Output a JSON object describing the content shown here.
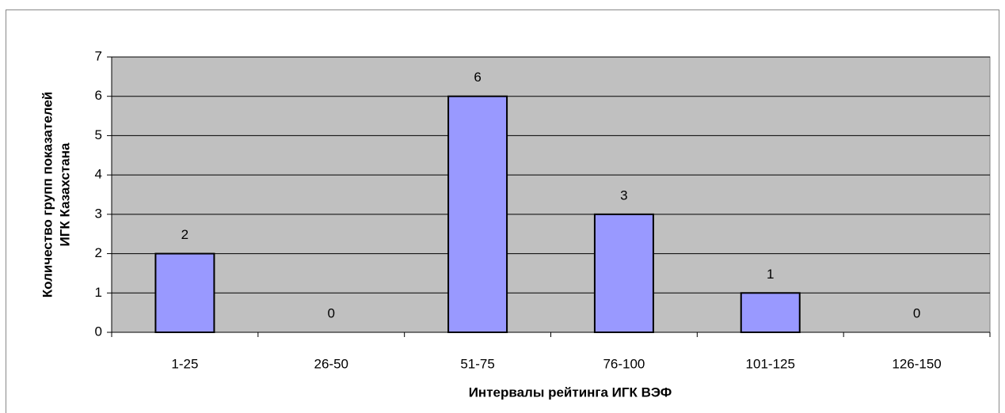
{
  "chart_data": {
    "type": "bar",
    "categories": [
      "1-25",
      "26-50",
      "51-75",
      "76-100",
      "101-125",
      "126-150"
    ],
    "values": [
      2,
      0,
      6,
      3,
      1,
      0
    ],
    "color": "#9999ff",
    "plot_background": "#c0c0c0",
    "ylim": [
      0,
      7
    ],
    "yticks": [
      0,
      1,
      2,
      3,
      4,
      5,
      6,
      7
    ],
    "grid": true,
    "xlabel": "Интервалы рейтинга ИГК ВЭФ",
    "ylabel": [
      "Количество групп показателей",
      "ИГК Казахстана"
    ]
  }
}
